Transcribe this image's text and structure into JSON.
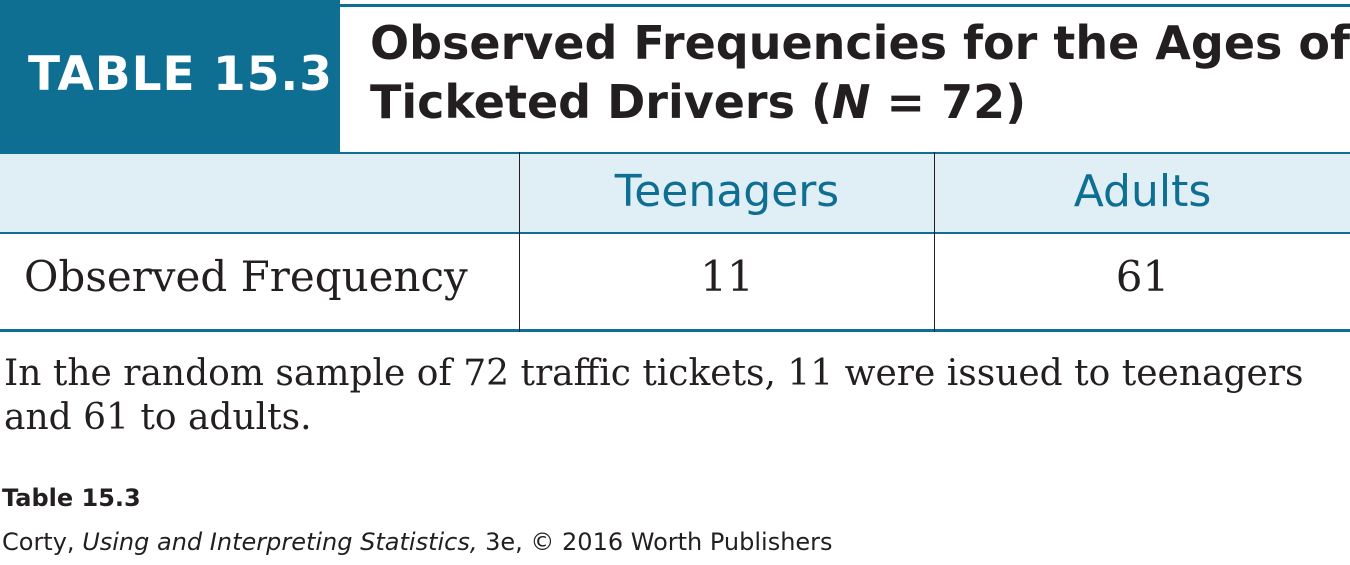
{
  "table": {
    "label": "TABLE 15.3",
    "title_line1": "Observed Frequencies for the Ages of",
    "title_line2_prefix": "Ticketed Drivers (",
    "title_line2_var": "N",
    "title_line2_suffix": " = 72)",
    "columns": [
      "Teenagers",
      "Adults"
    ],
    "rows": [
      {
        "label": "Observed Frequency",
        "values": [
          "11",
          "61"
        ]
      }
    ],
    "caption": "In the random sample of 72 traffic tickets, 11 were issued to teenagers and 61 to adults."
  },
  "credit": {
    "title": "Table 15.3",
    "author": "Corty, ",
    "book": "Using and Interpreting Statistics,",
    "rest": " 3e, © 2016 Worth Publishers"
  },
  "colors": {
    "accent": "#0e6f93",
    "header_row_bg": "#e0eff6",
    "text": "#231f20"
  }
}
